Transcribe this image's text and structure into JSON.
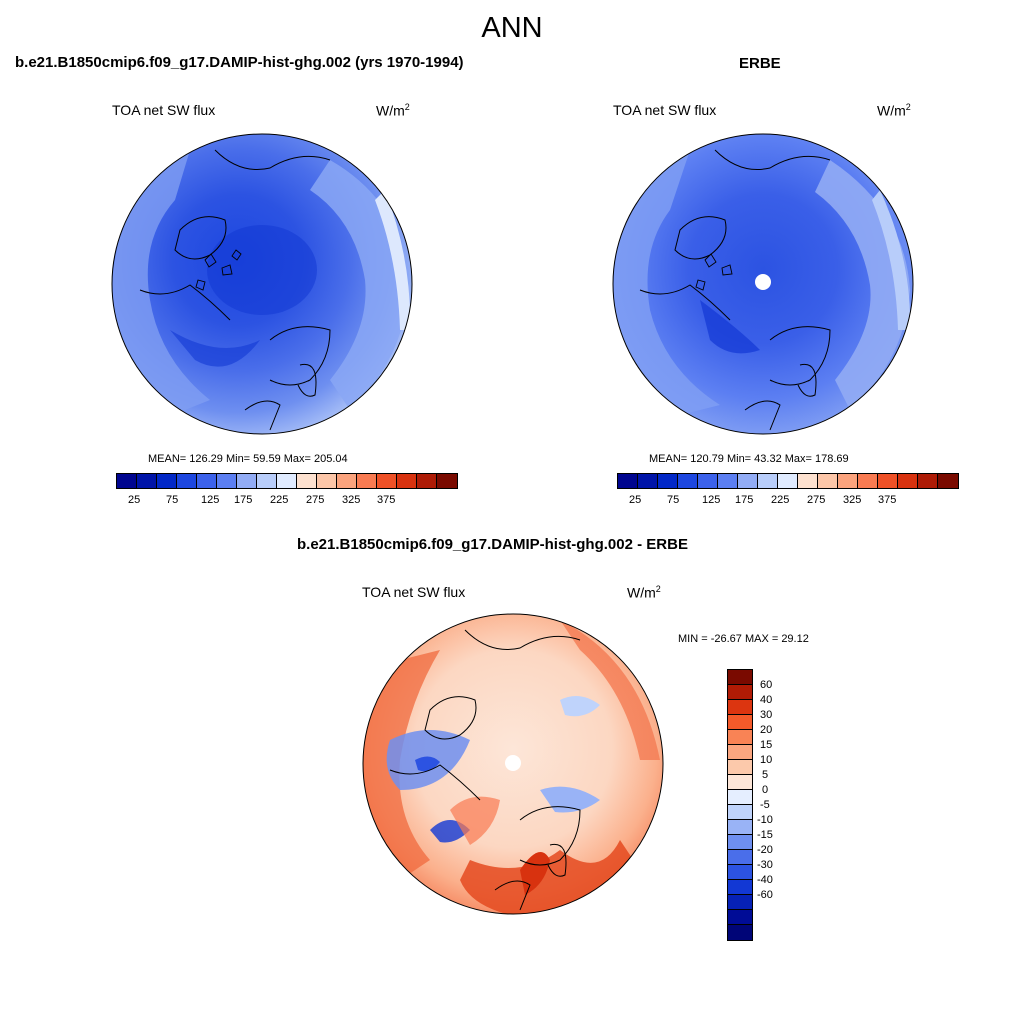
{
  "title": "ANN",
  "panels": [
    {
      "title": "b.e21.B1850cmip6.f09_g17.DAMIP-hist-ghg.002 (yrs 1970-1994)",
      "variable": "TOA net SW flux",
      "units": "W/m",
      "units_sup": "2",
      "stats": "MEAN= 126.29  Min=  59.59  Max= 205.04",
      "mean": 126.29,
      "min": 59.59,
      "max": 205.04
    },
    {
      "title": "ERBE",
      "variable": "TOA net SW flux",
      "units": "W/m",
      "units_sup": "2",
      "stats": "MEAN= 120.79  Min=  43.32  Max= 178.69",
      "mean": 120.79,
      "min": 43.32,
      "max": 178.69
    }
  ],
  "colorbar_top": {
    "colors": [
      "#00058f",
      "#0014a8",
      "#0228c7",
      "#1d47e0",
      "#3c62eb",
      "#5c7ff2",
      "#92acf5",
      "#b8cdfa",
      "#e0ebff",
      "#fde1cf",
      "#fcc6a8",
      "#fba37d",
      "#f97b52",
      "#ef5127",
      "#d8320f",
      "#ae1b06",
      "#7a0a00"
    ],
    "ticks": [
      "25",
      "75",
      "125",
      "175",
      "225",
      "275",
      "325",
      "375"
    ]
  },
  "diff": {
    "title": "b.e21.B1850cmip6.f09_g17.DAMIP-hist-ghg.002 - ERBE",
    "variable": "TOA net SW flux",
    "units": "W/m",
    "units_sup": "2",
    "minmax": "MIN = -26.67 MAX =  29.12",
    "min": -26.67,
    "max": 29.12
  },
  "colorbar_diff": {
    "colors": [
      "#7a0a00",
      "#b11b05",
      "#dc3510",
      "#f45a2a",
      "#f98355",
      "#fba680",
      "#fcc9ab",
      "#fde6d8",
      "#e5eeff",
      "#bfd3fb",
      "#99b3f6",
      "#6e8ff0",
      "#4a6eea",
      "#2c53e2",
      "#1238d4",
      "#0621b6",
      "#000c96",
      "#000577"
    ],
    "labels": [
      "60",
      "40",
      "30",
      "20",
      "15",
      "10",
      "5",
      "0",
      "-5",
      "-10",
      "-15",
      "-20",
      "-30",
      "-40",
      "-60"
    ]
  }
}
